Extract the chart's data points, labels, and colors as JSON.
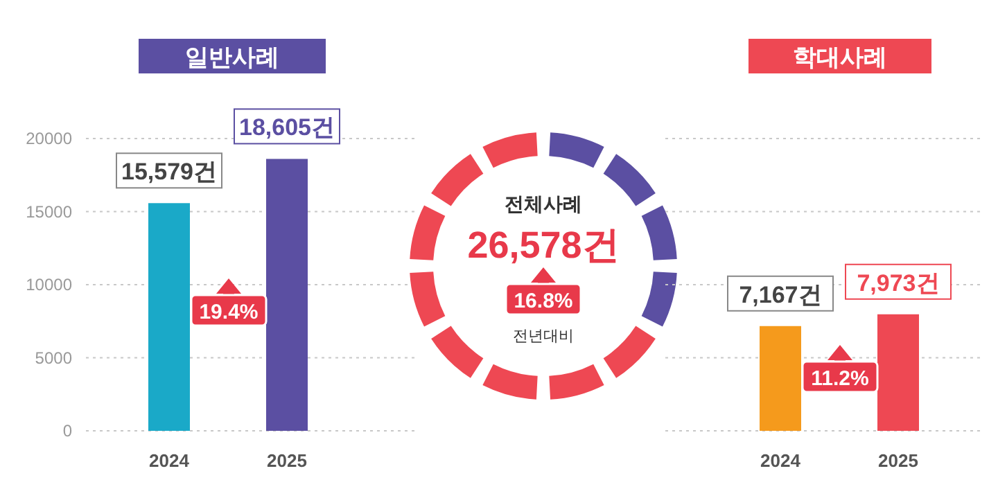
{
  "chart_data": [
    {
      "type": "bar",
      "title": "일반사례",
      "categories": [
        "2024",
        "2025"
      ],
      "values": [
        15579,
        18605
      ],
      "colors": [
        "#1aa9c8",
        "#5b4fa2"
      ],
      "value_labels": [
        "15,579건",
        "18,605건"
      ],
      "ylim": [
        0,
        20000
      ],
      "yticks": [
        0,
        5000,
        10000,
        15000,
        20000
      ],
      "grid": "y",
      "annotations": [
        "19.4%"
      ]
    },
    {
      "type": "other",
      "title": "전체사례",
      "annotations": [
        "26,578건",
        "16.8%",
        "전년대비"
      ]
    },
    {
      "type": "bar",
      "title": "학대사례",
      "categories": [
        "2024",
        "2025"
      ],
      "values": [
        7167,
        7973
      ],
      "colors": [
        "#f59a1c",
        "#ee4853"
      ],
      "value_labels": [
        "7,167건",
        "7,973건"
      ],
      "ylim": [
        0,
        20000
      ],
      "yticks": [
        0,
        5000,
        10000,
        15000,
        20000
      ],
      "grid": "y",
      "tick_labels": "x",
      "annotations": [
        "11.2%"
      ]
    }
  ]
}
